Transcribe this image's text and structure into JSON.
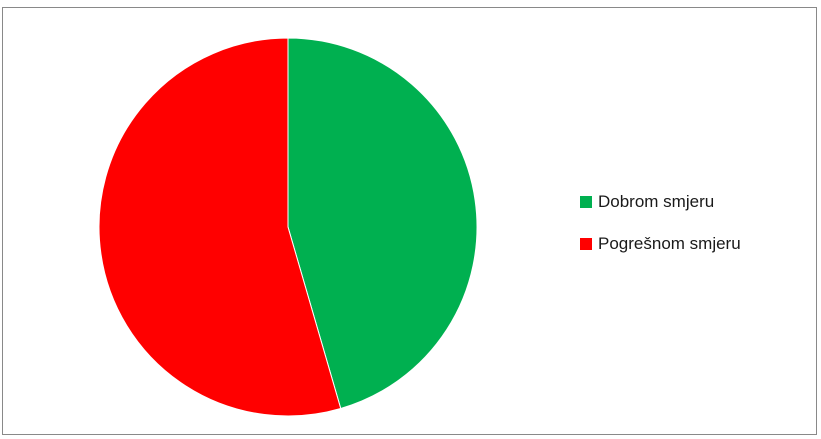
{
  "chart_data": {
    "type": "pie",
    "slices": [
      {
        "label": "Dobrom smjeru",
        "value": 45.5,
        "color": "#00b050"
      },
      {
        "label": "Pogrešnom smjeru",
        "value": 54.5,
        "color": "#ff0000"
      }
    ],
    "start_angle_deg": 0,
    "direction": "clockwise",
    "legend": {
      "position": "right"
    }
  }
}
